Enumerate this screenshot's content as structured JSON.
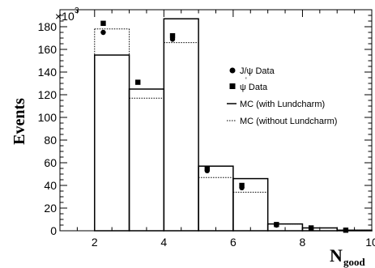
{
  "chart_data": {
    "type": "bar",
    "xlabel_main": "N",
    "xlabel_sub": "good",
    "ylabel": "Events",
    "y_multiplier_base": "×10",
    "y_multiplier_exp": "3",
    "xlim": [
      1,
      10
    ],
    "ylim": [
      0,
      195
    ],
    "x_ticks": [
      "2",
      "4",
      "6",
      "8",
      "10"
    ],
    "y_ticks": [
      "0",
      "20",
      "40",
      "60",
      "80",
      "100",
      "120",
      "140",
      "160",
      "180"
    ],
    "bins": [
      {
        "n": 2,
        "mc_with": 155,
        "mc_without": 178
      },
      {
        "n": 3,
        "mc_with": 125,
        "mc_without": 117
      },
      {
        "n": 4,
        "mc_with": 187,
        "mc_without": 166
      },
      {
        "n": 5,
        "mc_with": 57,
        "mc_without": 47
      },
      {
        "n": 6,
        "mc_with": 46,
        "mc_without": 34
      },
      {
        "n": 7,
        "mc_with": 6,
        "mc_without": 6
      },
      {
        "n": 8,
        "mc_with": 2.5,
        "mc_without": 2.5
      },
      {
        "n": 9,
        "mc_with": 0.5,
        "mc_without": 0.5
      }
    ],
    "series": [
      {
        "name": "J/ψ Data",
        "marker": "circle",
        "points": [
          [
            2.25,
            175
          ],
          [
            4.25,
            169
          ],
          [
            5.25,
            53
          ],
          [
            6.25,
            38
          ],
          [
            7.25,
            5
          ],
          [
            8.25,
            2
          ],
          [
            9.25,
            0.5
          ]
        ]
      },
      {
        "name": "ψ' Data",
        "marker": "square",
        "points": [
          [
            2.25,
            183
          ],
          [
            3.25,
            131
          ],
          [
            4.25,
            172
          ],
          [
            5.25,
            55
          ],
          [
            6.25,
            40
          ],
          [
            7.25,
            5.5
          ],
          [
            8.25,
            2.5
          ],
          [
            9.25,
            0.5
          ]
        ]
      },
      {
        "name": "MC (with Lundcharm)",
        "style": "solid"
      },
      {
        "name": "MC (without Lundcharm)",
        "style": "dotted"
      }
    ],
    "legend": {
      "placement": "top-right",
      "entries": [
        "J/ψ Data",
        "ψ Data",
        "MC (with Lundcharm)",
        "MC (without Lundcharm)"
      ],
      "psi_prime_mark": "'"
    }
  }
}
